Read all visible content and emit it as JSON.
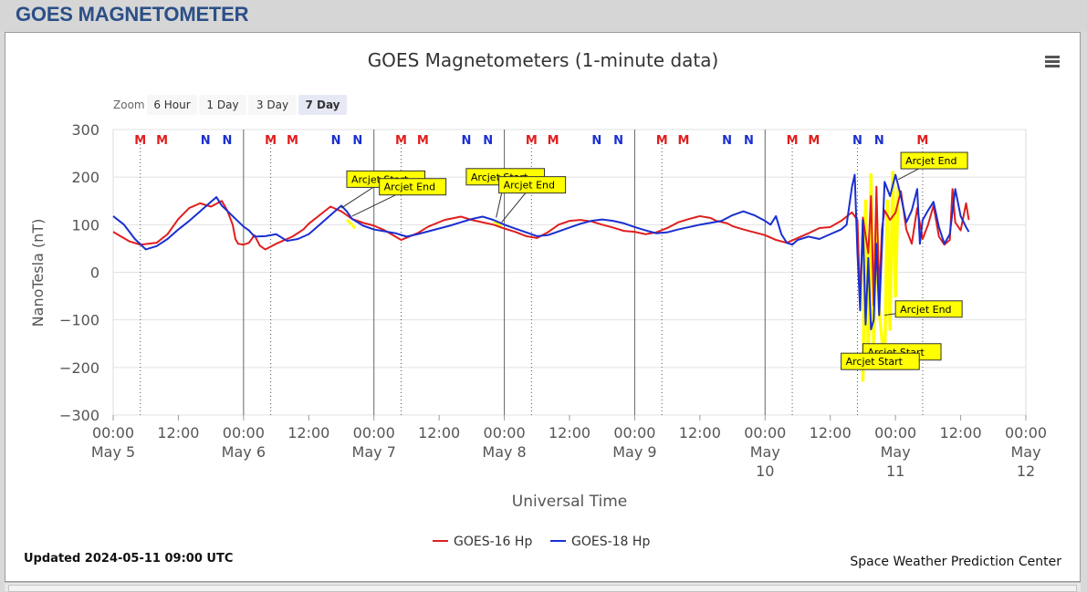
{
  "header": {
    "title": "GOES MAGNETOMETER"
  },
  "menu_icon": "hamburger-menu-icon",
  "zoom": {
    "label": "Zoom",
    "buttons": [
      "6 Hour",
      "1 Day",
      "3 Day",
      "7 Day"
    ],
    "selected": "7 Day"
  },
  "footer": {
    "updated": "Updated 2024-05-11 09:00 UTC",
    "credit": "Space Weather Prediction Center"
  },
  "colors": {
    "goes16": "#e01e1e",
    "goes18": "#1a2fd0",
    "arcjet_trace": "#ffff00",
    "marker_m": "#e01e1e",
    "marker_n": "#1a2fd0",
    "label_bg": "#ffff00"
  },
  "chart_data": {
    "type": "line",
    "title": "GOES Magnetometers (1-minute data)",
    "xlabel": "Universal Time",
    "ylabel": "NanoTesla (nT)",
    "ylim": [
      -300,
      300
    ],
    "yticks": [
      300,
      200,
      100,
      0,
      -100,
      -200,
      -300
    ],
    "ytick_labels": [
      "300",
      "200",
      "100",
      "0",
      "−100",
      "−200",
      "−300"
    ],
    "xlim_hours": [
      0,
      168
    ],
    "xticks": [
      {
        "h": 0,
        "lines": [
          "00:00",
          "May 5"
        ]
      },
      {
        "h": 12,
        "lines": [
          "12:00"
        ]
      },
      {
        "h": 24,
        "lines": [
          "00:00",
          "May 6"
        ]
      },
      {
        "h": 36,
        "lines": [
          "12:00"
        ]
      },
      {
        "h": 48,
        "lines": [
          "00:00",
          "May 7"
        ]
      },
      {
        "h": 60,
        "lines": [
          "12:00"
        ]
      },
      {
        "h": 72,
        "lines": [
          "00:00",
          "May 8"
        ]
      },
      {
        "h": 84,
        "lines": [
          "12:00"
        ]
      },
      {
        "h": 96,
        "lines": [
          "00:00",
          "May 9"
        ]
      },
      {
        "h": 108,
        "lines": [
          "12:00"
        ]
      },
      {
        "h": 120,
        "lines": [
          "00:00",
          "May",
          "10"
        ]
      },
      {
        "h": 132,
        "lines": [
          "12:00"
        ]
      },
      {
        "h": 144,
        "lines": [
          "00:00",
          "May",
          "11"
        ]
      },
      {
        "h": 156,
        "lines": [
          "12:00"
        ]
      },
      {
        "h": 168,
        "lines": [
          "00:00",
          "May",
          "12"
        ]
      }
    ],
    "grid": true,
    "legend_position": "bottom-center",
    "day_boundaries_h": [
      24,
      48,
      72,
      96,
      120
    ],
    "markers": [
      {
        "label": "M",
        "h": 5,
        "dotted": true
      },
      {
        "label": "M",
        "h": 9
      },
      {
        "label": "N",
        "h": 17
      },
      {
        "label": "N",
        "h": 21
      },
      {
        "label": "M",
        "h": 29,
        "dotted": true
      },
      {
        "label": "M",
        "h": 33
      },
      {
        "label": "N",
        "h": 41
      },
      {
        "label": "N",
        "h": 45
      },
      {
        "label": "M",
        "h": 53,
        "dotted": true
      },
      {
        "label": "M",
        "h": 57
      },
      {
        "label": "N",
        "h": 65
      },
      {
        "label": "N",
        "h": 69
      },
      {
        "label": "M",
        "h": 77,
        "dotted": true
      },
      {
        "label": "M",
        "h": 81
      },
      {
        "label": "N",
        "h": 89
      },
      {
        "label": "N",
        "h": 93
      },
      {
        "label": "M",
        "h": 101,
        "dotted": true
      },
      {
        "label": "M",
        "h": 105
      },
      {
        "label": "N",
        "h": 113
      },
      {
        "label": "N",
        "h": 117
      },
      {
        "label": "M",
        "h": 125,
        "dotted": true
      },
      {
        "label": "M",
        "h": 129
      },
      {
        "label": "N",
        "h": 137,
        "dotted": true
      },
      {
        "label": "N",
        "h": 141
      },
      {
        "label": "M",
        "h": 149,
        "dotted": true
      }
    ],
    "series": [
      {
        "name": "GOES-16 Hp",
        "color": "#e01e1e",
        "points": [
          [
            0,
            85
          ],
          [
            3,
            65
          ],
          [
            5,
            58
          ],
          [
            8,
            62
          ],
          [
            10,
            80
          ],
          [
            12,
            112
          ],
          [
            14,
            135
          ],
          [
            16,
            145
          ],
          [
            18,
            138
          ],
          [
            20,
            150
          ],
          [
            21,
            130
          ],
          [
            22,
            100
          ],
          [
            22.5,
            70
          ],
          [
            23,
            60
          ],
          [
            24,
            58
          ],
          [
            25,
            62
          ],
          [
            26,
            78
          ],
          [
            27,
            56
          ],
          [
            28,
            48
          ],
          [
            30,
            60
          ],
          [
            33,
            75
          ],
          [
            35,
            90
          ],
          [
            36,
            102
          ],
          [
            38,
            120
          ],
          [
            40,
            138
          ],
          [
            42,
            128
          ],
          [
            44,
            112
          ],
          [
            46,
            104
          ],
          [
            48,
            98
          ],
          [
            50,
            88
          ],
          [
            53,
            68
          ],
          [
            56,
            82
          ],
          [
            58,
            96
          ],
          [
            61,
            110
          ],
          [
            64,
            117
          ],
          [
            66,
            110
          ],
          [
            68,
            105
          ],
          [
            70,
            100
          ],
          [
            72,
            92
          ],
          [
            74,
            85
          ],
          [
            76,
            76
          ],
          [
            78,
            72
          ],
          [
            80,
            84
          ],
          [
            82,
            100
          ],
          [
            84,
            108
          ],
          [
            86,
            110
          ],
          [
            88,
            107
          ],
          [
            90,
            100
          ],
          [
            92,
            94
          ],
          [
            94,
            87
          ],
          [
            96,
            85
          ],
          [
            98,
            80
          ],
          [
            100,
            84
          ],
          [
            102,
            93
          ],
          [
            104,
            105
          ],
          [
            106,
            112
          ],
          [
            108,
            118
          ],
          [
            110,
            114
          ],
          [
            111,
            108
          ],
          [
            113,
            103
          ],
          [
            114,
            97
          ],
          [
            116,
            90
          ],
          [
            118,
            84
          ],
          [
            120,
            78
          ],
          [
            122,
            68
          ],
          [
            124,
            62
          ],
          [
            126,
            72
          ],
          [
            128,
            82
          ],
          [
            130,
            93
          ],
          [
            132,
            95
          ],
          [
            134,
            108
          ],
          [
            136,
            126
          ],
          [
            137,
            110
          ],
          [
            137.5,
            -60
          ],
          [
            138,
            115
          ],
          [
            139,
            40
          ],
          [
            139.5,
            160
          ],
          [
            140,
            -70
          ],
          [
            140.5,
            180
          ],
          [
            141,
            -50
          ],
          [
            141.5,
            90
          ],
          [
            142,
            130
          ],
          [
            143,
            110
          ],
          [
            144,
            125
          ],
          [
            145,
            170
          ],
          [
            146,
            90
          ],
          [
            147,
            60
          ],
          [
            148,
            135
          ],
          [
            149,
            70
          ],
          [
            150,
            100
          ],
          [
            151,
            140
          ],
          [
            152,
            75
          ],
          [
            153,
            58
          ],
          [
            154,
            68
          ],
          [
            154.5,
            175
          ],
          [
            155,
            105
          ],
          [
            156,
            88
          ],
          [
            157,
            145
          ],
          [
            157.5,
            110
          ]
        ]
      },
      {
        "name": "GOES-18 Hp",
        "color": "#1a2fd0",
        "points": [
          [
            0,
            118
          ],
          [
            2,
            100
          ],
          [
            4,
            70
          ],
          [
            6,
            48
          ],
          [
            8,
            55
          ],
          [
            10,
            70
          ],
          [
            12,
            90
          ],
          [
            14,
            108
          ],
          [
            16,
            128
          ],
          [
            18,
            148
          ],
          [
            19,
            158
          ],
          [
            20,
            140
          ],
          [
            22,
            118
          ],
          [
            24,
            96
          ],
          [
            25,
            88
          ],
          [
            26,
            75
          ],
          [
            28,
            76
          ],
          [
            30,
            80
          ],
          [
            32,
            66
          ],
          [
            34,
            70
          ],
          [
            36,
            80
          ],
          [
            38,
            100
          ],
          [
            40,
            120
          ],
          [
            42,
            140
          ],
          [
            43,
            128
          ],
          [
            44,
            112
          ],
          [
            46,
            98
          ],
          [
            48,
            90
          ],
          [
            50,
            86
          ],
          [
            52,
            82
          ],
          [
            54,
            75
          ],
          [
            56,
            80
          ],
          [
            58,
            86
          ],
          [
            60,
            92
          ],
          [
            62,
            98
          ],
          [
            64,
            105
          ],
          [
            66,
            112
          ],
          [
            68,
            117
          ],
          [
            70,
            110
          ],
          [
            72,
            100
          ],
          [
            74,
            92
          ],
          [
            76,
            84
          ],
          [
            78,
            76
          ],
          [
            80,
            78
          ],
          [
            82,
            86
          ],
          [
            84,
            94
          ],
          [
            86,
            102
          ],
          [
            88,
            108
          ],
          [
            90,
            111
          ],
          [
            92,
            108
          ],
          [
            94,
            103
          ],
          [
            96,
            95
          ],
          [
            98,
            88
          ],
          [
            100,
            82
          ],
          [
            102,
            84
          ],
          [
            104,
            90
          ],
          [
            106,
            95
          ],
          [
            108,
            100
          ],
          [
            110,
            104
          ],
          [
            112,
            108
          ],
          [
            114,
            120
          ],
          [
            116,
            128
          ],
          [
            118,
            120
          ],
          [
            120,
            108
          ],
          [
            121,
            100
          ],
          [
            122,
            118
          ],
          [
            123,
            80
          ],
          [
            124,
            62
          ],
          [
            125,
            58
          ],
          [
            126,
            68
          ],
          [
            128,
            75
          ],
          [
            130,
            70
          ],
          [
            132,
            80
          ],
          [
            134,
            90
          ],
          [
            135,
            100
          ],
          [
            136,
            180
          ],
          [
            136.5,
            205
          ],
          [
            137,
            40
          ],
          [
            137.5,
            -80
          ],
          [
            138,
            110
          ],
          [
            138.5,
            -110
          ],
          [
            139,
            30
          ],
          [
            139.5,
            -120
          ],
          [
            140,
            -100
          ],
          [
            140.5,
            60
          ],
          [
            141,
            -90
          ],
          [
            142,
            190
          ],
          [
            143,
            160
          ],
          [
            144,
            205
          ],
          [
            145,
            160
          ],
          [
            146,
            105
          ],
          [
            147,
            130
          ],
          [
            148,
            175
          ],
          [
            148.5,
            60
          ],
          [
            149,
            110
          ],
          [
            150,
            130
          ],
          [
            151,
            148
          ],
          [
            152,
            95
          ],
          [
            153,
            60
          ],
          [
            154,
            80
          ],
          [
            155,
            175
          ],
          [
            156,
            118
          ],
          [
            157,
            95
          ],
          [
            157.5,
            85
          ]
        ]
      },
      {
        "name": "Arcjet",
        "color": "#ffff00",
        "legend": false,
        "points": [
          [
            138,
            -230
          ],
          [
            138.5,
            150
          ],
          [
            139,
            -200
          ],
          [
            139.5,
            205
          ],
          [
            140,
            -150
          ],
          [
            140.5,
            120
          ],
          [
            141,
            -80
          ],
          [
            142,
            -200
          ],
          [
            142.5,
            150
          ],
          [
            143,
            -120
          ],
          [
            143.5,
            210
          ],
          [
            144,
            -50
          ],
          [
            144.5,
            180
          ]
        ]
      }
    ],
    "extra_yellow": [
      [
        [
          43,
          110
        ],
        [
          44,
          100
        ],
        [
          44.5,
          92
        ]
      ],
      [
        [
          70,
          108
        ],
        [
          71,
          100
        ],
        [
          71.5,
          96
        ]
      ]
    ],
    "annotations": [
      {
        "text": "Arcjet Start",
        "box_h": 43,
        "box_v": 213,
        "anchor_h": 42,
        "anchor_v": 135
      },
      {
        "text": "Arcjet End",
        "box_h": 49,
        "box_v": 197,
        "anchor_h": 44,
        "anchor_v": 118
      },
      {
        "text": "Arcjet Start",
        "box_h": 65,
        "box_v": 218,
        "anchor_h": 70.5,
        "anchor_v": 115
      },
      {
        "text": "Arcjet End",
        "box_h": 71,
        "box_v": 201,
        "anchor_h": 71.5,
        "anchor_v": 105
      },
      {
        "text": "Arcjet End",
        "box_h": 145,
        "box_v": 252,
        "anchor_h": 144.5,
        "anchor_v": 195
      },
      {
        "text": "Arcjet End",
        "box_h": 144,
        "box_v": -60,
        "anchor_h": 142,
        "anchor_v": -90
      },
      {
        "text": "Arcjet Start",
        "box_h": 138,
        "box_v": -150,
        "anchor_h": 142,
        "anchor_v": -190
      },
      {
        "text": "Arcjet Start",
        "box_h": 134,
        "box_v": -170,
        "anchor_h": 138,
        "anchor_v": -200
      }
    ]
  }
}
